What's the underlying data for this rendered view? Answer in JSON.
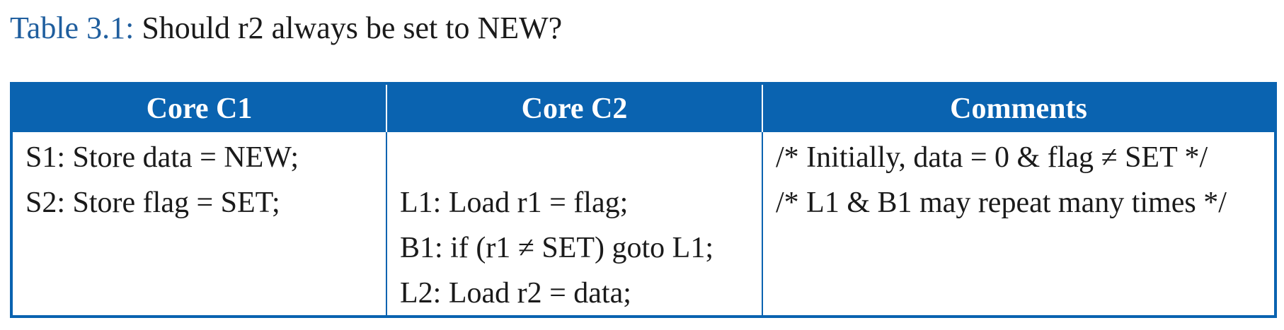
{
  "caption": {
    "label": "Table 3.1:",
    "text": "Should r2 always be set to NEW?"
  },
  "table": {
    "headers": [
      "Core C1",
      "Core C2",
      "Comments"
    ],
    "core_c1": [
      "S1: Store data = NEW;",
      "S2: Store flag = SET;",
      "",
      ""
    ],
    "core_c2": [
      "",
      "L1: Load r1 = flag;",
      "B1: if (r1 ≠ SET) goto L1;",
      "L2: Load r2 = data;"
    ],
    "comments": [
      "/* Initially, data = 0 & flag ≠ SET */",
      "/* L1 & B1 may repeat many times */",
      "",
      ""
    ]
  },
  "colors": {
    "header_bg": "#0a63b0",
    "caption_label": "#1f5e9e"
  }
}
